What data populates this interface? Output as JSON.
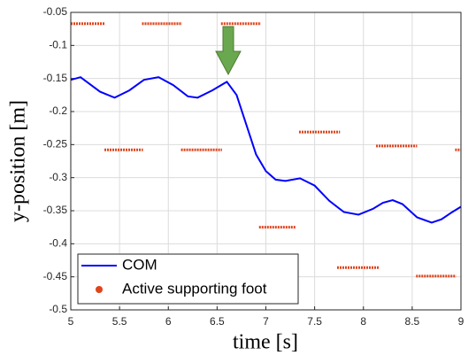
{
  "chart_data": {
    "type": "line",
    "xlabel": "time [s]",
    "ylabel": "y-position [m]",
    "xlim": [
      5,
      9
    ],
    "xticks": [
      5,
      5.5,
      6,
      6.5,
      7,
      7.5,
      8,
      8.5,
      9
    ],
    "ylim": [
      -0.5,
      -0.05
    ],
    "yticks": [
      -0.05,
      -0.1,
      -0.15,
      -0.2,
      -0.25,
      -0.3,
      -0.35,
      -0.4,
      -0.45,
      -0.5
    ],
    "grid": true,
    "legend": "lower left",
    "series": [
      {
        "name": "COM",
        "color": "#0000ff",
        "style": "line",
        "x": [
          5,
          5.1,
          5.3,
          5.45,
          5.6,
          5.75,
          5.9,
          6.05,
          6.2,
          6.3,
          6.45,
          6.6,
          6.7,
          6.8,
          6.9,
          7.0,
          7.1,
          7.2,
          7.35,
          7.5,
          7.65,
          7.8,
          7.95,
          8.1,
          8.2,
          8.3,
          8.4,
          8.55,
          8.7,
          8.8,
          8.9,
          9.0
        ],
        "values": [
          -0.152,
          -0.148,
          -0.17,
          -0.179,
          -0.168,
          -0.152,
          -0.148,
          -0.16,
          -0.177,
          -0.179,
          -0.168,
          -0.155,
          -0.175,
          -0.22,
          -0.265,
          -0.29,
          -0.303,
          -0.305,
          -0.301,
          -0.312,
          -0.335,
          -0.352,
          -0.356,
          -0.347,
          -0.338,
          -0.334,
          -0.34,
          -0.36,
          -0.368,
          -0.363,
          -0.353,
          -0.344
        ]
      },
      {
        "name": "Active supporting foot",
        "color": "#e0441c",
        "style": "dots",
        "x": [
          5.0,
          5.35,
          null,
          5.73,
          6.14,
          null,
          6.54,
          6.95,
          null,
          5.345,
          5.74,
          null,
          6.13,
          6.55,
          null,
          6.93,
          7.31,
          null,
          7.34,
          7.76,
          null,
          7.73,
          8.16,
          null,
          8.13,
          8.55,
          null,
          8.54,
          8.95,
          null,
          8.94,
          9.0
        ],
        "values": [
          -0.067,
          -0.067,
          null,
          -0.067,
          -0.067,
          null,
          -0.067,
          -0.067,
          null,
          -0.258,
          -0.258,
          null,
          -0.258,
          -0.258,
          null,
          -0.375,
          -0.375,
          null,
          -0.231,
          -0.231,
          null,
          -0.436,
          -0.436,
          null,
          -0.252,
          -0.252,
          null,
          -0.449,
          -0.449,
          null,
          -0.258,
          -0.258
        ]
      }
    ]
  }
}
